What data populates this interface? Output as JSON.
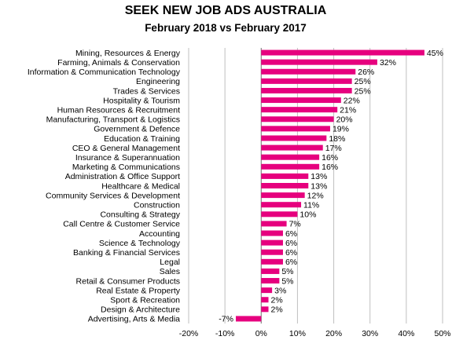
{
  "chart_data": {
    "type": "bar",
    "orientation": "horizontal",
    "title": "SEEK NEW JOB ADS AUSTRALIA",
    "subtitle": "February 2018 vs February 2017",
    "xlabel": "",
    "ylabel": "",
    "xlim": [
      -0.2,
      0.5
    ],
    "x_ticks": [
      -0.2,
      -0.1,
      0,
      0.1,
      0.2,
      0.3,
      0.4,
      0.5
    ],
    "x_tick_labels": [
      "-20%",
      "-10%",
      "0%",
      "10%",
      "20%",
      "30%",
      "40%",
      "50%"
    ],
    "grid": "vertical",
    "legend": "none",
    "bar_color": "#e6007e",
    "categories": [
      "Mining, Resources & Energy",
      "Farming, Animals & Conservation",
      "Information & Communication Technology",
      "Engineering",
      "Trades & Services",
      "Hospitality & Tourism",
      "Human Resources & Recruitment",
      "Manufacturing, Transport & Logistics",
      "Government & Defence",
      "Education & Training",
      "CEO & General Management",
      "Insurance & Superannuation",
      "Marketing & Communications",
      "Administration & Office Support",
      "Healthcare & Medical",
      "Community Services & Development",
      "Construction",
      "Consulting & Strategy",
      "Call Centre & Customer Service",
      "Accounting",
      "Science & Technology",
      "Banking & Financial Services",
      "Legal",
      "Sales",
      "Retail & Consumer Products",
      "Real Estate & Property",
      "Sport & Recreation",
      "Design & Architecture",
      "Advertising, Arts & Media"
    ],
    "values": [
      0.45,
      0.32,
      0.26,
      0.25,
      0.25,
      0.22,
      0.21,
      0.2,
      0.19,
      0.18,
      0.17,
      0.16,
      0.16,
      0.13,
      0.13,
      0.12,
      0.11,
      0.1,
      0.07,
      0.06,
      0.06,
      0.06,
      0.06,
      0.05,
      0.05,
      0.03,
      0.02,
      0.02,
      -0.07
    ],
    "data_labels": [
      "45%",
      "32%",
      "26%",
      "25%",
      "25%",
      "22%",
      "21%",
      "20%",
      "19%",
      "18%",
      "17%",
      "16%",
      "16%",
      "13%",
      "13%",
      "12%",
      "11%",
      "10%",
      "7%",
      "6%",
      "6%",
      "6%",
      "6%",
      "5%",
      "5%",
      "3%",
      "2%",
      "2%",
      "-7%"
    ]
  }
}
